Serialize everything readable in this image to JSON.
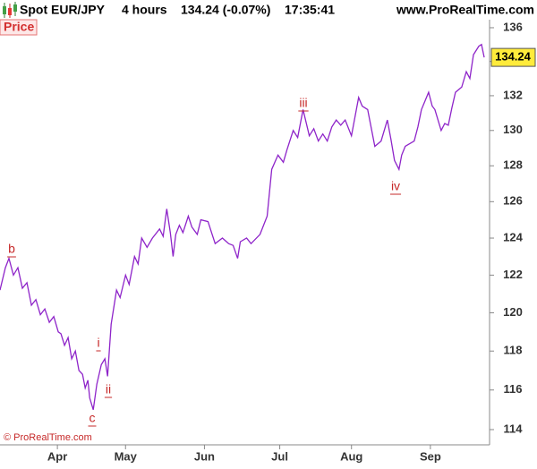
{
  "chart_data": {
    "type": "line",
    "title": "Spot EUR/JPY",
    "timeframe": "4 hours",
    "quote": "134.24 (-0.07%)",
    "time": "17:35:41",
    "source": "www.ProRealTime.com",
    "panel_label": "Price",
    "copyright": "© ProRealTime.com",
    "color": "#8e24c9",
    "log_scale": true,
    "x": [
      0,
      1.5,
      2.5,
      3.75,
      5,
      6.25,
      7.5,
      8.75,
      10,
      11.25,
      12.5,
      13.75,
      15,
      16.25,
      17,
      18,
      19,
      20,
      21,
      22,
      23,
      23.75,
      24.5,
      25,
      26,
      27,
      28.25,
      29.25,
      30,
      31,
      32.5,
      33.5,
      35,
      36,
      37.5,
      38.5,
      39.5,
      41,
      42.5,
      44.5,
      45.5,
      46.5,
      47.5,
      48.25,
      49,
      50,
      51,
      52.5,
      53.5,
      55,
      56,
      58,
      59,
      60,
      62,
      63.75,
      65,
      66.25,
      67,
      68.75,
      70,
      72.5,
      74.5,
      75.75,
      77.5,
      79,
      80,
      81.75,
      83,
      84.5,
      86.25,
      87.5,
      88.75,
      90,
      91.25,
      92.5,
      93.75,
      95,
      96.25,
      98,
      100,
      101,
      102.5,
      104.5,
      106.25,
      108,
      109,
      110,
      111.25,
      112,
      113,
      115.5,
      116.5,
      117.5,
      119.5,
      120.5,
      121.25,
      123,
      124,
      125,
      126,
      127,
      128.75,
      130,
      131,
      132,
      133.5,
      134.25,
      135
    ],
    "values": [
      121.2,
      122.4,
      122.9,
      122.0,
      122.4,
      121.3,
      121.6,
      120.4,
      120.7,
      119.9,
      120.2,
      119.5,
      119.8,
      119.0,
      118.9,
      118.3,
      118.7,
      117.6,
      118.0,
      117.0,
      116.8,
      116.1,
      116.5,
      115.6,
      115.0,
      116.3,
      117.3,
      117.6,
      116.7,
      119.4,
      121.2,
      120.8,
      122.0,
      121.5,
      123.0,
      122.6,
      124.0,
      123.5,
      124.0,
      124.5,
      124.1,
      125.6,
      124.3,
      123.0,
      124.2,
      124.7,
      124.3,
      125.2,
      124.6,
      124.2,
      125.0,
      124.9,
      124.3,
      123.7,
      124.0,
      123.7,
      123.6,
      122.9,
      123.8,
      124.0,
      123.7,
      124.2,
      125.2,
      127.8,
      128.6,
      128.2,
      128.9,
      130.0,
      129.6,
      131.2,
      129.7,
      130.1,
      129.4,
      129.8,
      129.4,
      130.2,
      130.6,
      130.3,
      130.6,
      129.7,
      131.9,
      131.4,
      131.2,
      129.1,
      129.4,
      130.6,
      129.5,
      128.3,
      127.8,
      128.6,
      129.1,
      129.4,
      130.2,
      131.2,
      132.2,
      131.4,
      131.2,
      130.0,
      130.4,
      130.3,
      131.3,
      132.2,
      132.5,
      133.4,
      133.0,
      134.4,
      134.9,
      135.0,
      134.24
    ],
    "xlim": [
      0,
      136
    ],
    "xticks": [
      {
        "value": 16,
        "label": "Apr"
      },
      {
        "value": 35,
        "label": "May"
      },
      {
        "value": 57,
        "label": "Jun"
      },
      {
        "value": 78,
        "label": "Jul"
      },
      {
        "value": 98,
        "label": "Aug"
      },
      {
        "value": 120,
        "label": "Sep"
      }
    ],
    "ylim": [
      113.24,
      136.48
    ],
    "yticks": [
      114,
      116,
      118,
      120,
      122,
      124,
      126,
      128,
      130,
      132,
      134,
      136
    ],
    "annotations": [
      "b",
      "c",
      "i",
      "ii",
      "iii",
      "iv"
    ]
  }
}
